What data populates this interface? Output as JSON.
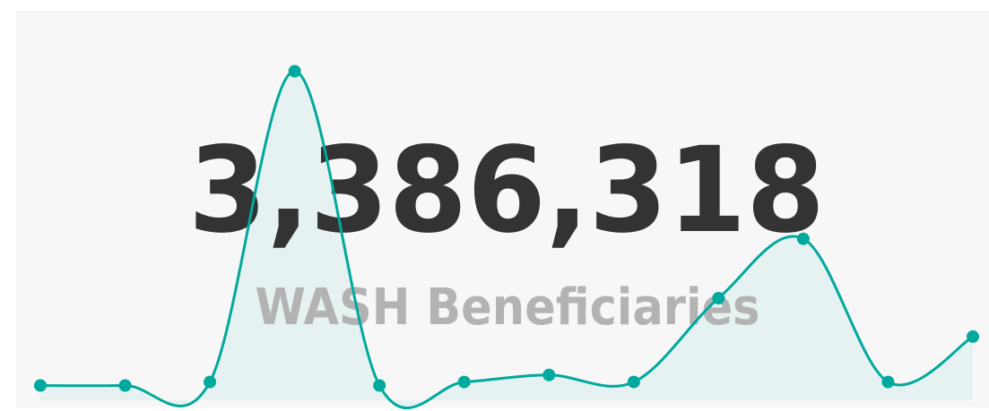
{
  "kpi_value": "3,386,318",
  "kpi_label": "WASH Beneficiaries",
  "chart_data": {
    "type": "line",
    "categories": [
      null,
      null,
      null,
      null,
      null,
      null,
      null,
      null,
      null,
      null,
      null,
      null
    ],
    "values": [
      5,
      5,
      6,
      95,
      5,
      6,
      8,
      6,
      30,
      47,
      6,
      19
    ],
    "color": "#00a99d",
    "fill": "#e6f2f1",
    "ylim": [
      0,
      100
    ]
  }
}
